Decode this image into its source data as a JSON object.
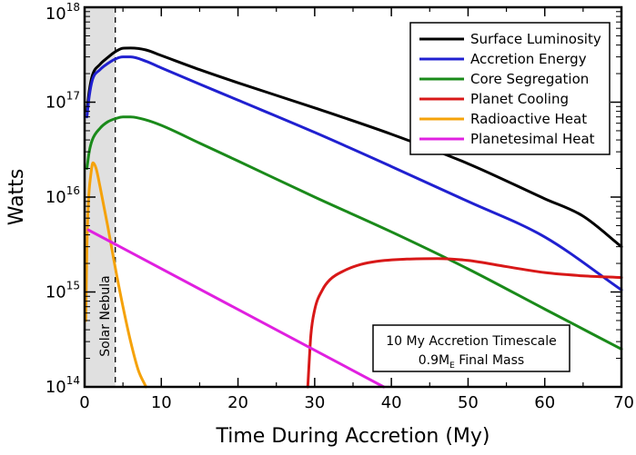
{
  "chart_data": {
    "type": "line",
    "title": "",
    "xlabel": "Time During Accretion  (My)",
    "ylabel": "Watts",
    "xlim": [
      0,
      70
    ],
    "ylim": [
      100000000000000.0,
      1e+18
    ],
    "yscale": "log",
    "grid": false,
    "legend_position": "top-right",
    "x_ticks": [
      0,
      10,
      20,
      30,
      40,
      50,
      60,
      70
    ],
    "x_tick_labels": [
      "0",
      "10",
      "20",
      "30",
      "40",
      "50",
      "60",
      "70"
    ],
    "y_ticks": [
      {
        "value": 100000000000000.0,
        "base": "10",
        "exp": "14"
      },
      {
        "value": 1000000000000000.0,
        "base": "10",
        "exp": "15"
      },
      {
        "value": 1e+16,
        "base": "10",
        "exp": "16"
      },
      {
        "value": 1e+17,
        "base": "10",
        "exp": "17"
      },
      {
        "value": 1e+18,
        "base": "10",
        "exp": "18"
      }
    ],
    "shaded_region": {
      "x_start": 0,
      "x_end": 4,
      "label": "Solar Nebula",
      "color": "#e0e0e0"
    },
    "annotation": {
      "line1": "10 My Accretion Timescale",
      "line2_prefix": "0.9M",
      "line2_subscript": "E",
      "line2_suffix": " Final Mass"
    },
    "series": [
      {
        "name": "Surface Luminosity",
        "color": "#000000",
        "points": [
          [
            0.3,
            8e+16
          ],
          [
            0.6,
            1.3e+17
          ],
          [
            1,
            1.9e+17
          ],
          [
            2,
            2.5e+17
          ],
          [
            3,
            2.95e+17
          ],
          [
            4,
            3.4e+17
          ],
          [
            5,
            3.7e+17
          ],
          [
            6,
            3.72e+17
          ],
          [
            8,
            3.55e+17
          ],
          [
            10,
            3.1e+17
          ],
          [
            15,
            2.2e+17
          ],
          [
            20,
            1.6e+17
          ],
          [
            30,
            8.7e+16
          ],
          [
            40,
            4.6e+16
          ],
          [
            50,
            2.25e+16
          ],
          [
            60,
            9600000000000000.0
          ],
          [
            65,
            6300000000000000.0
          ],
          [
            70,
            3000000000000000.0
          ]
        ]
      },
      {
        "name": "Accretion Energy",
        "color": "#2020d0",
        "points": [
          [
            0.3,
            7e+16
          ],
          [
            0.6,
            1.15e+17
          ],
          [
            1,
            1.7e+17
          ],
          [
            2,
            2.2e+17
          ],
          [
            3,
            2.55e+17
          ],
          [
            4,
            2.85e+17
          ],
          [
            5,
            3e+17
          ],
          [
            6,
            3e+17
          ],
          [
            8,
            2.7e+17
          ],
          [
            10,
            2.3e+17
          ],
          [
            15,
            1.55e+17
          ],
          [
            20,
            1.05e+17
          ],
          [
            30,
            4.8e+16
          ],
          [
            40,
            2.1e+16
          ],
          [
            50,
            9000000000000000.0
          ],
          [
            60,
            3800000000000000.0
          ],
          [
            70,
            1050000000000000.0
          ]
        ]
      },
      {
        "name": "Core Segregation",
        "color": "#1a8a1a",
        "points": [
          [
            0.3,
            2e+16
          ],
          [
            0.6,
            3e+16
          ],
          [
            1,
            4e+16
          ],
          [
            2,
            5.3e+16
          ],
          [
            3,
            6.2e+16
          ],
          [
            4,
            6.7e+16
          ],
          [
            5,
            7e+16
          ],
          [
            6,
            7e+16
          ],
          [
            8,
            6.5e+16
          ],
          [
            10,
            5.7e+16
          ],
          [
            15,
            3.7e+16
          ],
          [
            20,
            2.4e+16
          ],
          [
            30,
            1e+16
          ],
          [
            40,
            4300000000000000.0
          ],
          [
            50,
            1750000000000000.0
          ],
          [
            60,
            660000000000000.0
          ],
          [
            70,
            250000000000000.0
          ]
        ]
      },
      {
        "name": "Planet Cooling",
        "color": "#d81818",
        "points": [
          [
            29.1,
            100000000000000.0
          ],
          [
            29.5,
            350000000000000.0
          ],
          [
            30,
            650000000000000.0
          ],
          [
            31,
            1050000000000000.0
          ],
          [
            32,
            1350000000000000.0
          ],
          [
            34,
            1700000000000000.0
          ],
          [
            36,
            1950000000000000.0
          ],
          [
            38,
            2100000000000000.0
          ],
          [
            42,
            2220000000000000.0
          ],
          [
            46,
            2250000000000000.0
          ],
          [
            50,
            2150000000000000.0
          ],
          [
            55,
            1850000000000000.0
          ],
          [
            60,
            1600000000000000.0
          ],
          [
            65,
            1480000000000000.0
          ],
          [
            70,
            1420000000000000.0
          ]
        ]
      },
      {
        "name": "Radioactive Heat",
        "color": "#f5a20a",
        "points": [
          [
            0.15,
            500000000000000.0
          ],
          [
            0.3,
            3000000000000000.0
          ],
          [
            0.5,
            9000000000000000.0
          ],
          [
            0.8,
            1.7e+16
          ],
          [
            1.1,
            2.3e+16
          ],
          [
            1.5,
            2e+16
          ],
          [
            2,
            1.3e+16
          ],
          [
            3,
            5000000000000000.0
          ],
          [
            4,
            1800000000000000.0
          ],
          [
            5,
            700000000000000.0
          ],
          [
            6,
            300000000000000.0
          ],
          [
            7,
            150000000000000.0
          ],
          [
            8,
            100000000000000.0
          ]
        ]
      },
      {
        "name": "Planetesimal Heat",
        "color": "#e020e0",
        "points": [
          [
            0.5,
            4500000000000000.0
          ],
          [
            39,
            100000000000000.0
          ]
        ]
      }
    ]
  }
}
